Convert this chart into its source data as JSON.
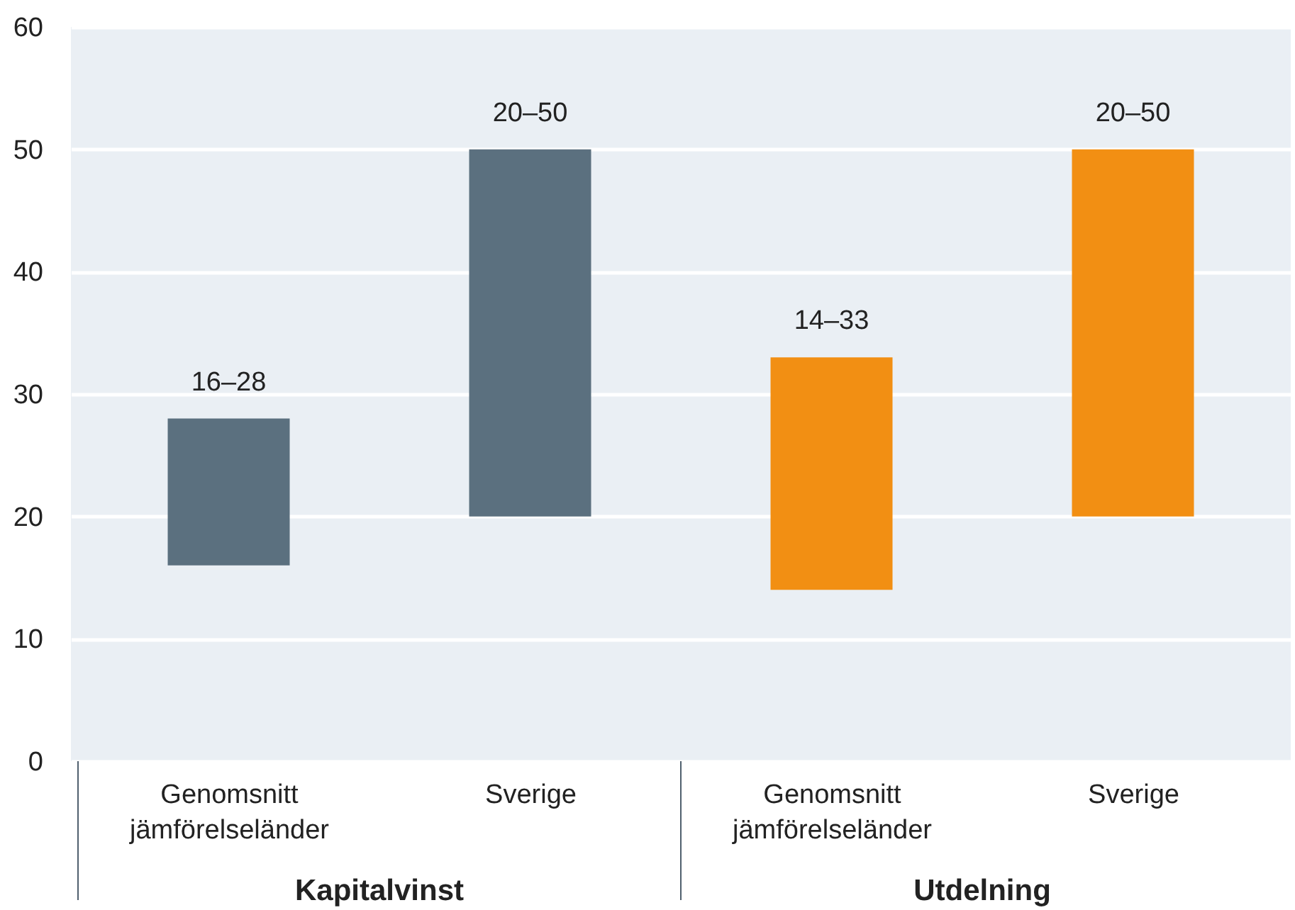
{
  "chart_data": {
    "type": "bar",
    "categories": [
      "Genomsnitt jämförelseländer",
      "Sverige",
      "Genomsnitt jämförelseländer",
      "Sverige"
    ],
    "series": [
      {
        "color": "#5b707f",
        "base": [
          16,
          20,
          null,
          null
        ],
        "values": [
          12,
          30,
          null,
          null
        ],
        "value_labels": [
          "16–28",
          "20–50",
          null,
          null
        ]
      },
      {
        "color": "#f28f13",
        "base": [
          null,
          null,
          14,
          20
        ],
        "values": [
          null,
          null,
          19,
          30
        ],
        "value_labels": [
          null,
          null,
          "14–33",
          "20–50"
        ]
      }
    ],
    "annotations": [
      "Kapitalvinst",
      "Utdelning"
    ],
    "ylim": [
      0,
      60
    ],
    "yticks": [
      0,
      10,
      20,
      30,
      40,
      50,
      60
    ],
    "grid": "y"
  }
}
